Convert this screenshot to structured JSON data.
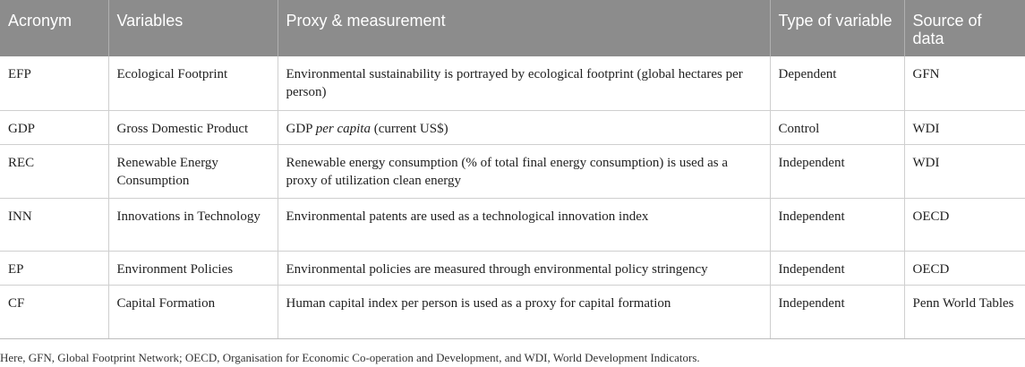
{
  "table": {
    "headers": {
      "acronym": "Acronym",
      "variables": "Variables",
      "proxy": "Proxy & measurement",
      "type": "Type of variable",
      "source": "Source of data"
    },
    "rows": [
      {
        "acronym": "EFP",
        "variable": "Ecological Footprint",
        "proxy": "Environmental sustainability is portrayed by ecological footprint (global hectares per person)",
        "type": "Dependent",
        "source": "GFN"
      },
      {
        "acronym": "GDP",
        "variable": "Gross Domestic Product",
        "proxy_prefix": "GDP ",
        "proxy_italic": "per capita",
        "proxy_suffix": " (current US$)",
        "type": "Control",
        "source": "WDI"
      },
      {
        "acronym": "REC",
        "variable": "Renewable Energy Consumption",
        "proxy": "Renewable energy consumption (% of total final energy consumption) is used as a proxy of utilization clean energy",
        "type": "Independent",
        "source": "WDI"
      },
      {
        "acronym": "INN",
        "variable": "Innovations in Technology",
        "proxy": "Environmental patents are used as a technological innovation index",
        "type": "Independent",
        "source": "OECD"
      },
      {
        "acronym": "EP",
        "variable": "Environment Policies",
        "proxy": "Environmental policies are measured through environmental policy stringency",
        "type": "Independent",
        "source": "OECD"
      },
      {
        "acronym": "CF",
        "variable": "Capital Formation",
        "proxy": "Human capital index per person is used as a proxy for capital formation",
        "type": "Independent",
        "source": "Penn World Tables"
      }
    ]
  },
  "footnote": "Here, GFN, Global Footprint Network; OECD, Organisation for Economic Co-operation and Development, and WDI, World Development Indicators."
}
